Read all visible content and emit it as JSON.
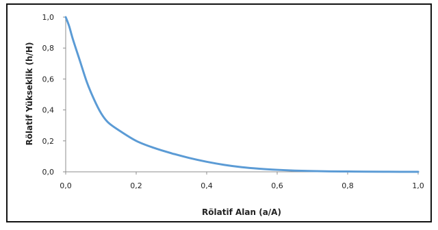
{
  "chart_data": {
    "type": "line",
    "title": "",
    "xlabel": "Rölatif Alan (a/A)",
    "ylabel": "Rölatif Yükseklik (h/H)",
    "xlim": [
      0.0,
      1.0
    ],
    "ylim": [
      0.0,
      1.0
    ],
    "x_ticks": [
      "0,0",
      "0,2",
      "0,4",
      "0,6",
      "0,8",
      "1,0"
    ],
    "y_ticks": [
      "0,0",
      "0,2",
      "0,4",
      "0,6",
      "0,8",
      "1,0"
    ],
    "grid": false,
    "legend": "none",
    "series": [
      {
        "color": "#5b9bd5",
        "x": [
          0.0,
          0.01,
          0.02,
          0.04,
          0.06,
          0.08,
          0.1,
          0.12,
          0.15,
          0.2,
          0.25,
          0.3,
          0.35,
          0.4,
          0.45,
          0.5,
          0.55,
          0.6,
          0.65,
          0.7,
          0.75,
          0.8,
          0.85,
          0.9,
          0.95,
          1.0
        ],
        "y": [
          1.0,
          0.94,
          0.86,
          0.72,
          0.58,
          0.47,
          0.38,
          0.32,
          0.27,
          0.2,
          0.155,
          0.12,
          0.09,
          0.065,
          0.045,
          0.03,
          0.02,
          0.013,
          0.008,
          0.005,
          0.003,
          0.002,
          0.001,
          0.0005,
          0.0002,
          0.0
        ]
      }
    ]
  }
}
